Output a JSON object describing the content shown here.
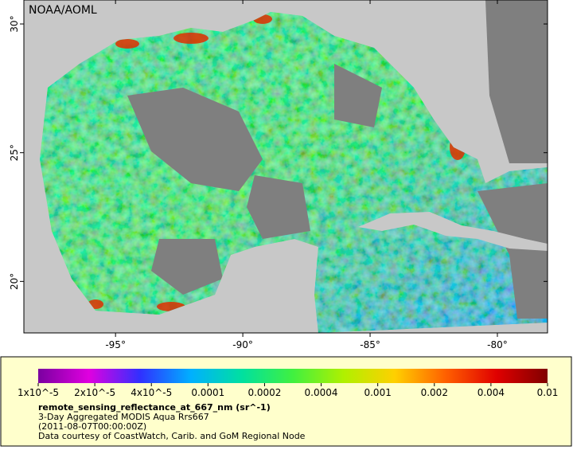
{
  "watermark": "NOAA/AOML",
  "map": {
    "xlim": [
      -98.6,
      -78.03
    ],
    "ylim": [
      18.0,
      30.93
    ],
    "x_ticks": [
      {
        "value": -95,
        "label": "-95°"
      },
      {
        "value": -90,
        "label": "-90°"
      },
      {
        "value": -85,
        "label": "-85°"
      },
      {
        "value": -80,
        "label": "-80°"
      }
    ],
    "y_ticks": [
      {
        "value": 20,
        "label": "20°"
      },
      {
        "value": 25,
        "label": "25°"
      },
      {
        "value": 30,
        "label": "30°"
      }
    ]
  },
  "colorbar": {
    "colors": [
      "#7a00a0",
      "#e000e0",
      "#3030ff",
      "#00b0ff",
      "#00e0a0",
      "#40f040",
      "#b0f000",
      "#ffd000",
      "#ff6000",
      "#e00000",
      "#800000"
    ],
    "ticks": [
      {
        "value": 1e-05,
        "label": "1x10^-5"
      },
      {
        "value": 2e-05,
        "label": "2x10^-5"
      },
      {
        "value": 4e-05,
        "label": "4x10^-5"
      },
      0.0001,
      0.0002,
      0.0004,
      0.001,
      0.002,
      0.004,
      0.01
    ]
  },
  "caption": {
    "variable": "remote_sensing_reflectance_at_667_nm (sr^-1)",
    "product": "3-Day Aggregated MODIS Aqua Rrs667",
    "date": "(2011-08-07T00:00:00Z)",
    "credit": "Data courtesy of CoastWatch, Carib. and GoM Regional Node"
  }
}
